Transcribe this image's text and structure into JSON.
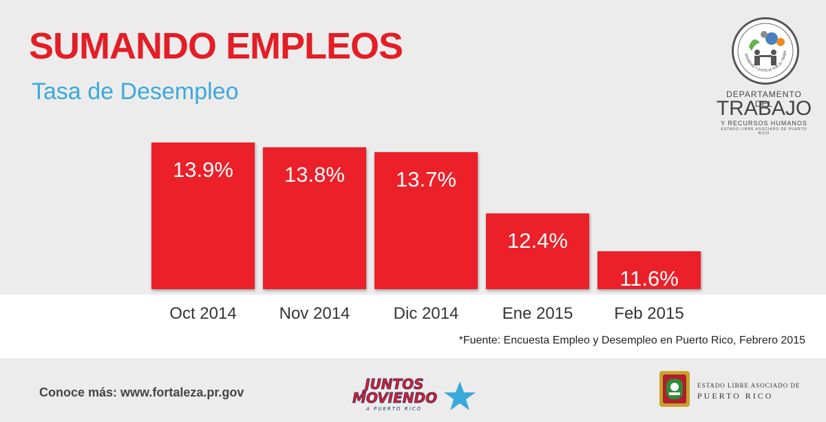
{
  "header": {
    "title": "SUMANDO EMPLEOS",
    "subtitle": "Tasa de Desempleo"
  },
  "department_logo": {
    "ring_text": "DIGNIDAD Y JUSTICIA POR EL TRABAJO",
    "line1": "DEPARTAMENTO DEL",
    "line2": "TRABAJO",
    "line3": "Y RECURSOS HUMANOS",
    "line4": "ESTADO LIBRE ASOCIADO DE PUERTO RICO"
  },
  "chart_data": {
    "type": "bar",
    "title": "SUMANDO EMPLEOS",
    "subtitle": "Tasa de Desempleo",
    "categories": [
      "Oct 2014",
      "Nov 2014",
      "Dic 2014",
      "Ene 2015",
      "Feb 2015"
    ],
    "values": [
      13.9,
      13.8,
      13.7,
      12.4,
      11.6
    ],
    "value_labels": [
      "13.9%",
      "13.8%",
      "13.7%",
      "12.4%",
      "11.6%"
    ],
    "unit": "%",
    "bar_color": "#eb2029",
    "grid": false,
    "legend": "none"
  },
  "source": "*Fuente: Encuesta Empleo y Desempleo en Puerto Rico, Febrero 2015",
  "footer": {
    "link_text": "Conoce más: www.fortaleza.pr.gov",
    "campaign_logo": {
      "line1": "JUNTOS",
      "line2": "MOVIENDO",
      "line3": "A PUERTO RICO"
    },
    "government": {
      "line1": "ESTADO LIBRE ASOCIADO DE",
      "line2": "PUERTO RICO"
    }
  },
  "colors": {
    "accent_red": "#e31e26",
    "subtitle_blue": "#3aa9dc",
    "background": "#ececec"
  }
}
